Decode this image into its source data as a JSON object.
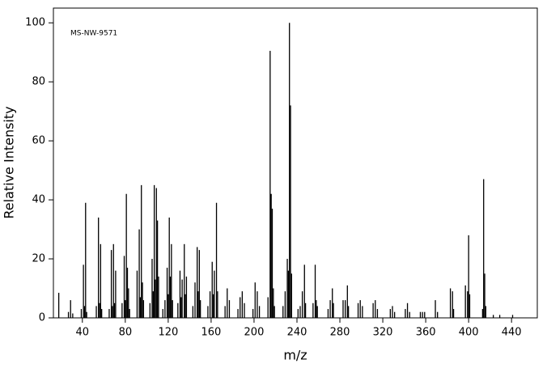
{
  "chart_data": {
    "type": "stem",
    "annotation": "MS-NW-9571",
    "xlabel": "m/z",
    "ylabel": "Relative Intensity",
    "color": "#000000",
    "xlim": [
      13,
      464
    ],
    "ylim": [
      0,
      105
    ],
    "xticks": [
      40,
      80,
      120,
      160,
      200,
      240,
      280,
      320,
      360,
      400,
      440
    ],
    "yticks": [
      0,
      20,
      40,
      60,
      80,
      100
    ],
    "x": [
      18,
      27,
      29,
      31,
      39,
      41,
      42,
      43,
      44,
      53,
      55,
      56,
      57,
      58,
      65,
      67,
      68,
      69,
      70,
      71,
      77,
      79,
      80,
      81,
      82,
      83,
      84,
      91,
      93,
      94,
      95,
      96,
      97,
      103,
      105,
      106,
      107,
      108,
      109,
      110,
      111,
      115,
      117,
      119,
      120,
      121,
      122,
      123,
      124,
      129,
      131,
      132,
      133,
      135,
      136,
      137,
      143,
      145,
      147,
      148,
      149,
      150,
      157,
      159,
      161,
      162,
      163,
      165,
      166,
      173,
      175,
      177,
      185,
      187,
      189,
      191,
      199,
      201,
      203,
      205,
      213,
      215,
      216,
      217,
      218,
      219,
      227,
      229,
      231,
      232,
      233,
      234,
      235,
      241,
      243,
      245,
      247,
      248,
      255,
      257,
      258,
      259,
      269,
      271,
      273,
      274,
      283,
      285,
      287,
      288,
      297,
      299,
      301,
      311,
      313,
      315,
      327,
      329,
      331,
      341,
      343,
      345,
      355,
      357,
      359,
      369,
      371,
      383,
      385,
      386,
      397,
      399,
      400,
      401,
      413,
      414,
      415,
      416,
      423,
      429,
      441
    ],
    "values": [
      8.5,
      2,
      6,
      1.5,
      3,
      18,
      4,
      39,
      2,
      4,
      34,
      5,
      25,
      3,
      3,
      23,
      4,
      25,
      5,
      16,
      5,
      21,
      6,
      42,
      17,
      10,
      3,
      16,
      30,
      7,
      45,
      12,
      6,
      5,
      20,
      9,
      45,
      13,
      44,
      33,
      14,
      3,
      6,
      17,
      8,
      34,
      14,
      25,
      6,
      5,
      16,
      7,
      13,
      25,
      8,
      14,
      4,
      12,
      24,
      9,
      23,
      6,
      4,
      9,
      19,
      8,
      16,
      39,
      9,
      4,
      10,
      6,
      3,
      7,
      9,
      5,
      3,
      12,
      9,
      4,
      7,
      90.5,
      42,
      37,
      10,
      4,
      4,
      9,
      20,
      16,
      100,
      72,
      15,
      3,
      4,
      9,
      18,
      5,
      5,
      18,
      6,
      4,
      3,
      6,
      10,
      5,
      6,
      6,
      11,
      4,
      5,
      6,
      4,
      5,
      6,
      3,
      3,
      4,
      2,
      3,
      5,
      2,
      2,
      2,
      2,
      6,
      2,
      10,
      9,
      3,
      11,
      9,
      28,
      8,
      3,
      47,
      15,
      4,
      1,
      1,
      1
    ]
  }
}
